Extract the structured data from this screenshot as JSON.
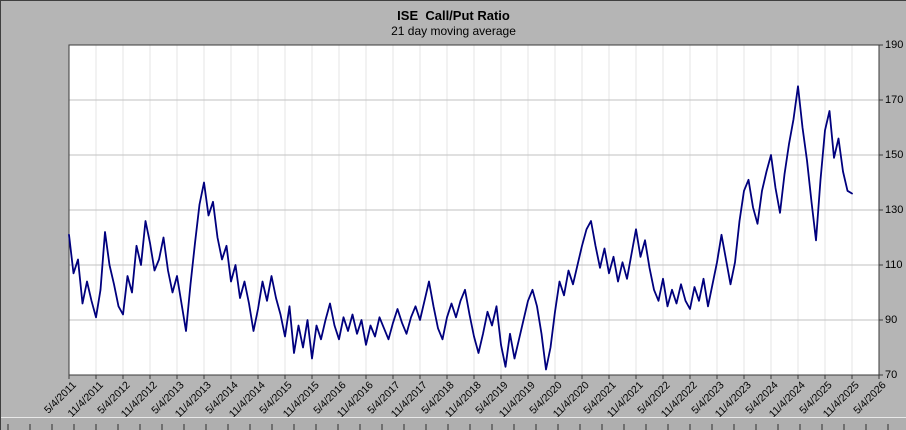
{
  "colors": {
    "page_bg": "#b5b5b5",
    "plot_bg": "#ffffff",
    "line": "#00007e",
    "grid_h": "#c2c2c2",
    "grid_v": "#e4e4e4",
    "axis": "#3a3a3a",
    "text": "#000000"
  },
  "chart_data": {
    "type": "line",
    "title": "ISE  Call/Put Ratio",
    "subtitle": "21 day moving average",
    "ylim": [
      70,
      190
    ],
    "y_ticks": [
      70,
      90,
      110,
      130,
      150,
      170,
      190
    ],
    "y_axis_side": "right",
    "grid": true,
    "legend": "none",
    "x_tick_interval_months": 6,
    "x_label_rotation_deg": 45,
    "x_tick_labels": [
      "5/4/2011",
      "11/4/2011",
      "5/4/2012",
      "11/4/2012",
      "5/4/2013",
      "11/4/2013",
      "5/4/2014",
      "11/4/2014",
      "5/4/2015",
      "11/4/2015",
      "5/4/2016",
      "11/4/2016",
      "5/4/2017",
      "11/4/2017",
      "5/4/2018",
      "11/4/2018",
      "5/4/2019",
      "11/4/2019",
      "5/4/2020",
      "11/4/2020",
      "5/4/2021",
      "11/4/2021",
      "5/4/2022",
      "11/4/2022",
      "5/4/2023",
      "11/4/2023",
      "5/4/2024",
      "11/4/2024",
      "5/4/2025",
      "11/4/2025",
      "5/4/2026"
    ],
    "series": [
      {
        "name": "ISE Call/Put Ratio 21-day moving average",
        "start": "2011-05",
        "interval": "monthly",
        "values": [
          121,
          107,
          112,
          96,
          104,
          97,
          91,
          101,
          122,
          110,
          103,
          95,
          92,
          106,
          100,
          117,
          110,
          126,
          118,
          108,
          112,
          120,
          108,
          100,
          106,
          96,
          86,
          103,
          118,
          132,
          140,
          128,
          133,
          120,
          112,
          117,
          104,
          110,
          98,
          104,
          96,
          86,
          94,
          104,
          97,
          106,
          98,
          92,
          84,
          95,
          78,
          88,
          80,
          90,
          76,
          88,
          83,
          90,
          96,
          88,
          83,
          91,
          86,
          92,
          85,
          90,
          81,
          88,
          84,
          91,
          87,
          83,
          89,
          94,
          89,
          85,
          91,
          95,
          90,
          97,
          104,
          95,
          87,
          83,
          91,
          96,
          91,
          97,
          101,
          92,
          84,
          78,
          85,
          93,
          88,
          95,
          81,
          73,
          85,
          76,
          83,
          90,
          97,
          101,
          95,
          85,
          72,
          80,
          93,
          104,
          99,
          108,
          103,
          110,
          117,
          123,
          126,
          117,
          109,
          116,
          107,
          113,
          104,
          111,
          105,
          114,
          123,
          113,
          119,
          109,
          101,
          97,
          105,
          95,
          101,
          96,
          103,
          97,
          94,
          102,
          97,
          105,
          95,
          103,
          111,
          121,
          112,
          103,
          111,
          126,
          137,
          141,
          131,
          125,
          137,
          144,
          150,
          138,
          129,
          143,
          154,
          163,
          175,
          160,
          148,
          133,
          119,
          141,
          159,
          166,
          149,
          156,
          144,
          137,
          136
        ]
      }
    ]
  }
}
